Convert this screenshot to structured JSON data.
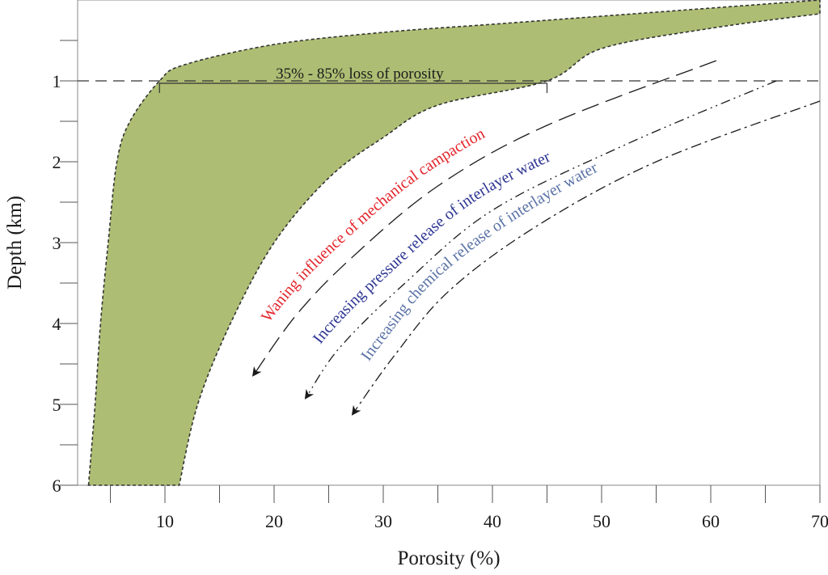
{
  "chart_data": {
    "type": "area",
    "title": "",
    "xlabel": "Porosity (%)",
    "ylabel": "Depth (km)",
    "xlim": [
      2,
      70
    ],
    "ylim": [
      0,
      6
    ],
    "y_inverted": true,
    "x_ticks": [
      10,
      20,
      30,
      40,
      50,
      60,
      70
    ],
    "y_ticks": [
      1,
      2,
      3,
      4,
      5,
      6
    ],
    "grid": false,
    "band": {
      "fill_color": "#adbe74",
      "outline_color": "#333333",
      "lower_bound": [
        {
          "depth": 6.0,
          "porosity": 3.0
        },
        {
          "depth": 5.0,
          "porosity": 3.6
        },
        {
          "depth": 4.0,
          "porosity": 4.1
        },
        {
          "depth": 3.0,
          "porosity": 4.8
        },
        {
          "depth": 2.0,
          "porosity": 5.6
        },
        {
          "depth": 1.5,
          "porosity": 6.8
        },
        {
          "depth": 1.0,
          "porosity": 9.5
        },
        {
          "depth": 0.8,
          "porosity": 11.8
        },
        {
          "depth": 0.55,
          "porosity": 20.0
        },
        {
          "depth": 0.4,
          "porosity": 30.0
        },
        {
          "depth": 0.3,
          "porosity": 40.0
        },
        {
          "depth": 0.2,
          "porosity": 50.0
        },
        {
          "depth": 0.1,
          "porosity": 60.0
        },
        {
          "depth": 0.0,
          "porosity": 70.0
        }
      ],
      "upper_bound": [
        {
          "depth": 0.17,
          "porosity": 70.0
        },
        {
          "depth": 0.35,
          "porosity": 60.0
        },
        {
          "depth": 0.6,
          "porosity": 50.0
        },
        {
          "depth": 1.0,
          "porosity": 45.0
        },
        {
          "depth": 1.3,
          "porosity": 35.0
        },
        {
          "depth": 1.7,
          "porosity": 30.0
        },
        {
          "depth": 2.2,
          "porosity": 25.0
        },
        {
          "depth": 3.0,
          "porosity": 20.0
        },
        {
          "depth": 4.0,
          "porosity": 16.0
        },
        {
          "depth": 5.0,
          "porosity": 13.0
        },
        {
          "depth": 6.0,
          "porosity": 11.3
        }
      ]
    },
    "reference_line": {
      "depth": 1.0,
      "style": "dashed"
    },
    "annotations": [
      {
        "text": "35% - 85% loss of porosity",
        "type": "bracket",
        "x_start": 9.5,
        "x_end": 45.0,
        "depth": 0.75
      }
    ],
    "trend_arrows": [
      {
        "label": "Waning influence of mechanical campaction",
        "color": "#e3252c",
        "line_style": "long-dash",
        "points": [
          {
            "porosity": 60.5,
            "depth": 0.75
          },
          {
            "porosity": 45.0,
            "depth": 1.55
          },
          {
            "porosity": 35.0,
            "depth": 2.3
          },
          {
            "porosity": 27.0,
            "depth": 3.2
          },
          {
            "porosity": 22.0,
            "depth": 3.9
          },
          {
            "porosity": 18.2,
            "depth": 4.62
          }
        ]
      },
      {
        "label": "Increasing  pressure release of interlayer water",
        "color": "#2d3592",
        "line_style": "dash-dot-dot",
        "points": [
          {
            "porosity": 66.0,
            "depth": 1.0
          },
          {
            "porosity": 52.0,
            "depth": 1.8
          },
          {
            "porosity": 40.0,
            "depth": 2.6
          },
          {
            "porosity": 32.0,
            "depth": 3.5
          },
          {
            "porosity": 26.0,
            "depth": 4.3
          },
          {
            "porosity": 23.0,
            "depth": 4.9
          }
        ]
      },
      {
        "label": "Increasing  chemical release of interlayer water",
        "color": "#5a72a6",
        "line_style": "dash-dot",
        "points": [
          {
            "porosity": 70.0,
            "depth": 1.25
          },
          {
            "porosity": 55.0,
            "depth": 2.0
          },
          {
            "porosity": 44.0,
            "depth": 2.8
          },
          {
            "porosity": 36.0,
            "depth": 3.6
          },
          {
            "porosity": 31.0,
            "depth": 4.4
          },
          {
            "porosity": 27.3,
            "depth": 5.1
          }
        ]
      }
    ]
  }
}
